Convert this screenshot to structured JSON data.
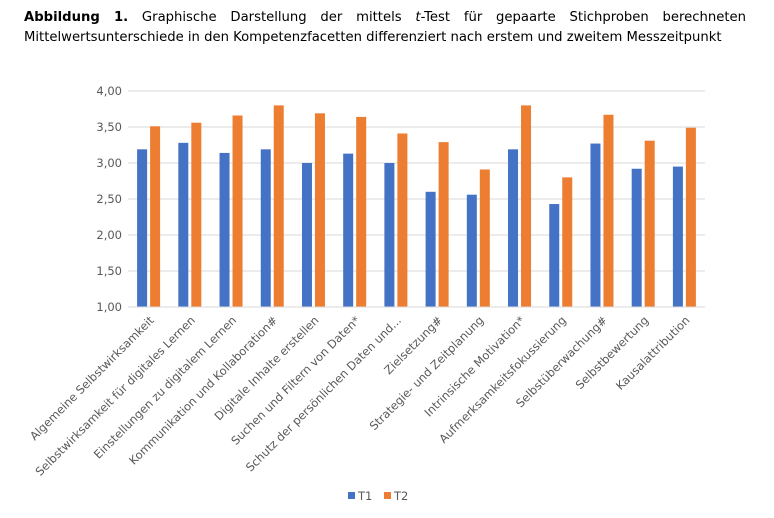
{
  "caption": {
    "label": "Abbildung 1.",
    "text_before_italic": " Graphische Darstellung der mittels ",
    "italic": "t",
    "text_after_italic": "-Test für gepaarte Stichproben berechneten Mittelwertsunterschiede in den Kompetenzfacetten differenziert nach erstem und zweitem Messzeitpunkt"
  },
  "chart_data": {
    "type": "bar",
    "categories": [
      "Algemeine Selbstwirksamkeit",
      "Selbstwirksamkeit für digitales Lernen",
      "Einstellungen zu digitalem Lernen",
      "Kommunikation und Kollaboration#",
      "Digitale Inhalte erstellen",
      "Suchen und Filtern von Daten*",
      "Schutz der persönlichen Daten und...",
      "Zielsetzung#",
      "Strategie- und Zeitplanung",
      "Intrinsische Motivation*",
      "Aufmerksamkeitsfokussierung",
      "Selbstüberwachung#",
      "Selbstbewertung",
      "Kausalattribution"
    ],
    "series": [
      {
        "name": "T1",
        "color": "#4472C4",
        "values": [
          3.19,
          3.28,
          3.14,
          3.19,
          3.0,
          3.13,
          3.0,
          2.6,
          2.56,
          3.19,
          2.43,
          3.27,
          2.92,
          2.95
        ]
      },
      {
        "name": "T2",
        "color": "#ED7D31",
        "values": [
          3.51,
          3.56,
          3.66,
          3.8,
          3.69,
          3.64,
          3.41,
          3.29,
          2.91,
          3.8,
          2.8,
          3.67,
          3.31,
          3.49
        ]
      }
    ],
    "ylim": [
      1.0,
      4.0
    ],
    "yticks": [
      "1,00",
      "1,50",
      "2,00",
      "2,50",
      "3,00",
      "3,50",
      "4,00"
    ],
    "grid": true,
    "legend": "bottom"
  }
}
